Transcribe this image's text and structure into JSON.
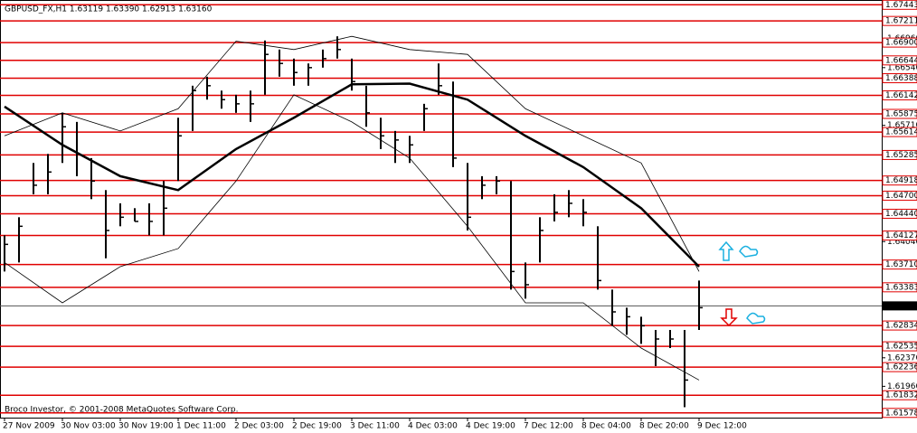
{
  "chart_data": {
    "type": "ohlc",
    "title": "GBPUSD_FX,H1  1.63119 1.63390 1.62913 1.63160",
    "copyright": "Broco Investor, © 2001-2008 MetaQuotes Software Corp.",
    "categories": [
      "27 Nov 2009",
      null,
      null,
      null,
      "30 Nov 03:00",
      null,
      null,
      null,
      "30 Nov 19:00",
      null,
      null,
      null,
      "1 Dec 11:00",
      null,
      null,
      null,
      "2 Dec 03:00",
      null,
      null,
      null,
      "2 Dec 19:00",
      null,
      null,
      null,
      "3 Dec 11:00",
      null,
      null,
      null,
      "4 Dec 03:00",
      null,
      null,
      null,
      "4 Dec 19:00",
      null,
      null,
      null,
      "7 Dec 12:00",
      null,
      null,
      null,
      "8 Dec 04:00",
      null,
      null,
      null,
      "8 Dec 20:00",
      null,
      null,
      null,
      "9 Dec 12:00"
    ],
    "high": [
      1.6413,
      1.6439,
      1.6517,
      1.653,
      1.6589,
      1.6576,
      1.6524,
      1.6478,
      1.6459,
      1.6452,
      1.6459,
      1.6491,
      1.6582,
      1.6628,
      1.6641,
      1.6621,
      1.6615,
      1.6621,
      1.6693,
      1.668,
      1.6667,
      1.666,
      1.668,
      1.6699,
      1.6667,
      1.6628,
      1.6582,
      1.6563,
      1.6556,
      1.6602,
      1.666,
      1.6634,
      1.6517,
      1.6498,
      1.6498,
      1.6491,
      1.6374,
      1.6439,
      1.6472,
      1.6478,
      1.6465,
      1.6426,
      1.6335,
      1.6309,
      1.6296,
      1.6277,
      1.6277,
      1.6277,
      1.6348
    ],
    "low": [
      1.6361,
      1.6374,
      1.6472,
      1.6472,
      1.6517,
      1.6498,
      1.6465,
      1.638,
      1.6426,
      1.6433,
      1.6413,
      1.6413,
      1.6491,
      1.6563,
      1.6608,
      1.6595,
      1.6589,
      1.6576,
      1.6615,
      1.6641,
      1.6628,
      1.6628,
      1.6654,
      1.6667,
      1.6621,
      1.6569,
      1.6537,
      1.6517,
      1.6517,
      1.6563,
      1.6615,
      1.6511,
      1.642,
      1.6465,
      1.6472,
      1.6335,
      1.6322,
      1.6374,
      1.6433,
      1.6439,
      1.6426,
      1.6335,
      1.6283,
      1.627,
      1.6257,
      1.6225,
      1.6251,
      1.6166,
      1.6277
    ],
    "close": [
      1.64,
      1.6426,
      1.6485,
      1.6504,
      1.6569,
      1.653,
      1.6491,
      1.642,
      1.6439,
      1.6433,
      1.6433,
      1.6452,
      1.6556,
      1.6621,
      1.6628,
      1.6608,
      1.6602,
      1.6602,
      1.6673,
      1.666,
      1.6647,
      1.6654,
      1.6667,
      1.668,
      1.6634,
      1.6589,
      1.6556,
      1.655,
      1.6543,
      1.6595,
      1.6628,
      1.6524,
      1.6439,
      1.6485,
      1.6491,
      1.6361,
      1.6342,
      1.642,
      1.6446,
      1.6459,
      1.6446,
      1.6348,
      1.6303,
      1.6296,
      1.6283,
      1.6264,
      1.6264,
      1.6205,
      1.6309
    ],
    "overlays": [
      {
        "x": [
          0,
          4,
          8,
          12,
          16,
          20,
          24,
          28,
          32,
          36,
          40,
          44,
          48
        ],
        "values": [
          1.6598,
          1.6543,
          1.6498,
          1.6478,
          1.6537,
          1.6582,
          1.663,
          1.6631,
          1.6608,
          1.6556,
          1.6511,
          1.6452,
          1.6368
        ],
        "color": "#000000",
        "width": 2.5
      },
      {
        "x": [
          0,
          4,
          8,
          12,
          16,
          20,
          24,
          28,
          32,
          36,
          40,
          44,
          48
        ],
        "values": [
          1.6556,
          1.6589,
          1.6563,
          1.6595,
          1.6692,
          1.668,
          1.6699,
          1.668,
          1.6673,
          1.6595,
          1.6556,
          1.6517,
          1.6361
        ],
        "color": "#000000",
        "width": 0.8
      },
      {
        "x": [
          0,
          4,
          8,
          12,
          16,
          20,
          24,
          28,
          32,
          36,
          40,
          44,
          48
        ],
        "values": [
          1.6374,
          1.6316,
          1.6368,
          1.6394,
          1.6491,
          1.6615,
          1.6576,
          1.6524,
          1.6426,
          1.6316,
          1.6316,
          1.6251,
          1.6205
        ],
        "color": "#000000",
        "width": 0.8
      }
    ],
    "ylim": [
      1.6151,
      1.6746
    ],
    "yticks": [
      {
        "value": 1.6696,
        "label": "1.66960"
      },
      {
        "value": 1.6654,
        "label": "1.66540"
      },
      {
        "value": 1.6571,
        "label": "1.65710"
      },
      {
        "value": 1.6404,
        "label": "1.64040"
      },
      {
        "value": 1.6237,
        "label": "1.62370"
      },
      {
        "value": 1.6196,
        "label": "1.61960"
      }
    ],
    "levels": [
      {
        "value": 1.67443,
        "label": "1.67443"
      },
      {
        "value": 1.67211,
        "label": "1.67211"
      },
      {
        "value": 1.669,
        "label": "1.66900"
      },
      {
        "value": 1.66644,
        "label": "1.66644"
      },
      {
        "value": 1.66388,
        "label": "1.66388"
      },
      {
        "value": 1.66142,
        "label": "1.66142"
      },
      {
        "value": 1.65875,
        "label": "1.65875"
      },
      {
        "value": 1.65614,
        "label": "1.65614"
      },
      {
        "value": 1.65285,
        "label": "1.65285"
      },
      {
        "value": 1.64918,
        "label": "1.64918"
      },
      {
        "value": 1.647,
        "label": "1.64700"
      },
      {
        "value": 1.6444,
        "label": "1.64440"
      },
      {
        "value": 1.64127,
        "label": "1.64127"
      },
      {
        "value": 1.6371,
        "label": "1.63710"
      },
      {
        "value": 1.63383,
        "label": "1.63383"
      },
      {
        "value": 1.62834,
        "label": "1.62834"
      },
      {
        "value": 1.62535,
        "label": "1.62535"
      },
      {
        "value": 1.62236,
        "label": "1.62236"
      },
      {
        "value": 1.61832,
        "label": "1.61832"
      },
      {
        "value": 1.61578,
        "label": "1.61578"
      }
    ],
    "level_color": "#e00000",
    "bid": {
      "value": 1.63116,
      "label": "1.63116"
    },
    "bar_color": "#000000"
  }
}
